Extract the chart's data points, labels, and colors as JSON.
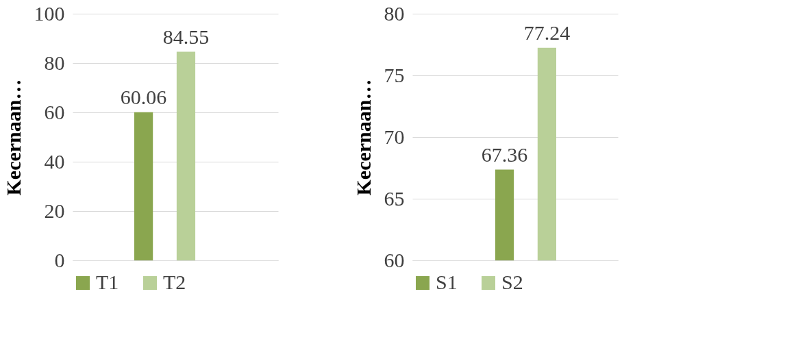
{
  "chart_data": [
    {
      "type": "bar",
      "ylabel": "Kecernaan…",
      "categories": [
        null
      ],
      "series": [
        {
          "name": "T1",
          "color": "#8aa64f",
          "values": [
            60.06
          ]
        },
        {
          "name": "T2",
          "color": "#b9d098",
          "values": [
            84.55
          ]
        }
      ],
      "ylim": [
        0,
        100
      ],
      "yticks": [
        0,
        20,
        40,
        60,
        80,
        100
      ],
      "grid": "y",
      "legend": "bottom",
      "data_labels": true,
      "tick_labels": "y"
    },
    {
      "type": "bar",
      "ylabel": "Kecernaan…",
      "categories": [
        null
      ],
      "series": [
        {
          "name": "S1",
          "color": "#8aa64f",
          "values": [
            67.36
          ]
        },
        {
          "name": "S2",
          "color": "#b9d098",
          "values": [
            77.24
          ]
        }
      ],
      "ylim": [
        60,
        80
      ],
      "yticks": [
        60,
        65,
        70,
        75,
        80
      ],
      "grid": "y",
      "legend": "bottom",
      "data_labels": true,
      "tick_labels": "y"
    }
  ]
}
